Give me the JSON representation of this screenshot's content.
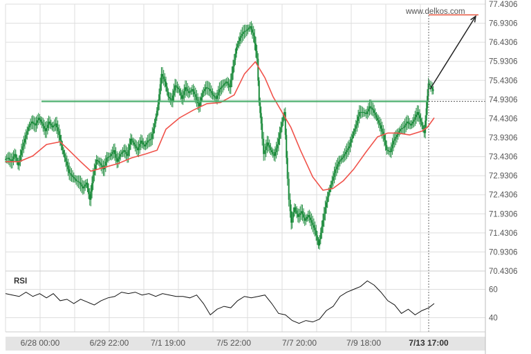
{
  "watermark": "www.delkos.com",
  "rsi_title": "RSI",
  "colors": {
    "candle": "#1a8a3a",
    "moving_average": "#f0524a",
    "support_line": "#4caf6e",
    "target_line": "#e8543d",
    "arrow": "#222222",
    "grid": "#dddddd",
    "axis_text": "#555555",
    "x_axis_band": "#e4e4e4"
  },
  "chart_data": [
    {
      "type": "candlestick",
      "x_tick_labels": [
        "6/28 00:00",
        "6/29 22:00",
        "7/1 19:00",
        "7/5 22:00",
        "7/7 20:00",
        "7/9 18:00",
        "7/13 17:00"
      ],
      "ylim": [
        70.4306,
        77.4306
      ],
      "y_tick_labels": [
        "77.4306",
        "76.9306",
        "76.4306",
        "75.9306",
        "75.4306",
        "74.9306",
        "74.4306",
        "73.9306",
        "73.4306",
        "72.9306",
        "72.4306",
        "71.9306",
        "71.4306",
        "70.9306",
        "70.4306"
      ],
      "resistance_level": 74.88,
      "target_level": 77.15,
      "series": [
        {
          "name": "Price",
          "points": [
            [
              0,
              73.35
            ],
            [
              5,
              73.4
            ],
            [
              10,
              73.3
            ],
            [
              15,
              73.5
            ],
            [
              20,
              73.2
            ],
            [
              25,
              73.6
            ],
            [
              30,
              73.9
            ],
            [
              35,
              74.2
            ],
            [
              40,
              74.35
            ],
            [
              45,
              74.25
            ],
            [
              50,
              74.45
            ],
            [
              55,
              74.3
            ],
            [
              60,
              74.1
            ],
            [
              65,
              74.35
            ],
            [
              70,
              74.2
            ],
            [
              75,
              74.3
            ],
            [
              80,
              74.0
            ],
            [
              85,
              73.6
            ],
            [
              90,
              73.3
            ],
            [
              95,
              73.0
            ],
            [
              100,
              72.9
            ],
            [
              105,
              72.8
            ],
            [
              110,
              72.75
            ],
            [
              115,
              72.6
            ],
            [
              120,
              72.75
            ],
            [
              125,
              72.3
            ],
            [
              130,
              72.95
            ],
            [
              135,
              73.35
            ],
            [
              140,
              73.25
            ],
            [
              145,
              73.1
            ],
            [
              150,
              73.4
            ],
            [
              155,
              73.45
            ],
            [
              160,
              73.6
            ],
            [
              165,
              73.3
            ],
            [
              170,
              73.5
            ],
            [
              175,
              73.6
            ],
            [
              180,
              73.45
            ],
            [
              185,
              73.9
            ],
            [
              190,
              73.75
            ],
            [
              195,
              73.6
            ],
            [
              200,
              73.85
            ],
            [
              205,
              73.7
            ],
            [
              210,
              73.85
            ],
            [
              215,
              73.9
            ],
            [
              220,
              74.3
            ],
            [
              225,
              74.8
            ],
            [
              230,
              75.6
            ],
            [
              235,
              75.4
            ],
            [
              240,
              75.0
            ],
            [
              245,
              74.9
            ],
            [
              250,
              75.3
            ],
            [
              255,
              75.2
            ],
            [
              260,
              74.95
            ],
            [
              265,
              75.25
            ],
            [
              270,
              75.1
            ],
            [
              275,
              75.2
            ],
            [
              280,
              75.0
            ],
            [
              285,
              74.75
            ],
            [
              290,
              75.1
            ],
            [
              295,
              75.25
            ],
            [
              300,
              75.2
            ],
            [
              305,
              75.05
            ],
            [
              310,
              74.95
            ],
            [
              315,
              75.2
            ],
            [
              320,
              75.3
            ],
            [
              325,
              75.4
            ],
            [
              330,
              75.25
            ],
            [
              335,
              75.8
            ],
            [
              340,
              76.3
            ],
            [
              345,
              76.55
            ],
            [
              350,
              76.7
            ],
            [
              355,
              76.75
            ],
            [
              360,
              76.85
            ],
            [
              365,
              76.6
            ],
            [
              370,
              76.0
            ],
            [
              373,
              74.85
            ],
            [
              376,
              74.3
            ],
            [
              380,
              73.5
            ],
            [
              385,
              73.8
            ],
            [
              390,
              73.6
            ],
            [
              395,
              73.45
            ],
            [
              400,
              73.75
            ],
            [
              405,
              74.2
            ],
            [
              410,
              74.6
            ],
            [
              413,
              73.4
            ],
            [
              417,
              72.3
            ],
            [
              420,
              71.7
            ],
            [
              425,
              72.1
            ],
            [
              430,
              71.85
            ],
            [
              435,
              72.0
            ],
            [
              440,
              71.75
            ],
            [
              445,
              71.9
            ],
            [
              450,
              71.7
            ],
            [
              455,
              71.5
            ],
            [
              460,
              71.1
            ],
            [
              465,
              71.6
            ],
            [
              470,
              72.1
            ],
            [
              475,
              72.5
            ],
            [
              480,
              72.8
            ],
            [
              485,
              73.1
            ],
            [
              490,
              73.3
            ],
            [
              495,
              73.4
            ],
            [
              500,
              73.55
            ],
            [
              505,
              73.7
            ],
            [
              510,
              74.0
            ],
            [
              515,
              74.25
            ],
            [
              520,
              74.6
            ],
            [
              525,
              74.6
            ],
            [
              530,
              74.55
            ],
            [
              535,
              74.75
            ],
            [
              540,
              74.65
            ],
            [
              545,
              74.45
            ],
            [
              550,
              74.25
            ],
            [
              555,
              74.0
            ],
            [
              560,
              73.6
            ],
            [
              565,
              73.55
            ],
            [
              570,
              73.85
            ],
            [
              575,
              74.0
            ],
            [
              580,
              74.15
            ],
            [
              585,
              74.2
            ],
            [
              590,
              74.35
            ],
            [
              595,
              74.25
            ],
            [
              600,
              74.4
            ],
            [
              605,
              74.6
            ],
            [
              610,
              74.35
            ],
            [
              615,
              74.05
            ],
            [
              618,
              74.7
            ],
            [
              621,
              75.35
            ],
            [
              625,
              75.25
            ],
            [
              628,
              75.15
            ]
          ]
        },
        {
          "name": "Moving average",
          "points": [
            [
              0,
              73.3
            ],
            [
              20,
              73.3
            ],
            [
              40,
              73.45
            ],
            [
              60,
              73.75
            ],
            [
              80,
              73.82
            ],
            [
              90,
              73.65
            ],
            [
              110,
              73.3
            ],
            [
              125,
              73.05
            ],
            [
              145,
              73.15
            ],
            [
              165,
              73.25
            ],
            [
              185,
              73.4
            ],
            [
              205,
              73.5
            ],
            [
              222,
              73.6
            ],
            [
              235,
              74.15
            ],
            [
              255,
              74.45
            ],
            [
              275,
              74.65
            ],
            [
              295,
              74.82
            ],
            [
              315,
              74.85
            ],
            [
              335,
              75.05
            ],
            [
              350,
              75.6
            ],
            [
              366,
              75.92
            ],
            [
              380,
              75.5
            ],
            [
              392,
              75.0
            ],
            [
              405,
              74.6
            ],
            [
              418,
              74.2
            ],
            [
              432,
              73.6
            ],
            [
              450,
              72.9
            ],
            [
              465,
              72.55
            ],
            [
              480,
              72.6
            ],
            [
              495,
              72.8
            ],
            [
              510,
              73.1
            ],
            [
              528,
              73.55
            ],
            [
              545,
              73.95
            ],
            [
              560,
              74.05
            ],
            [
              575,
              74.05
            ],
            [
              592,
              74.0
            ],
            [
              610,
              74.1
            ],
            [
              618,
              74.2
            ],
            [
              628,
              74.45
            ]
          ]
        }
      ]
    },
    {
      "type": "line",
      "title": "RSI",
      "y_tick_labels": [
        "60",
        "40"
      ],
      "ylim": [
        30,
        70
      ],
      "series": [
        {
          "name": "RSI",
          "points": [
            [
              0,
              57
            ],
            [
              10,
              56
            ],
            [
              20,
              55
            ],
            [
              30,
              58
            ],
            [
              40,
              55
            ],
            [
              50,
              57
            ],
            [
              60,
              54
            ],
            [
              70,
              57
            ],
            [
              80,
              52
            ],
            [
              90,
              53
            ],
            [
              100,
              50
            ],
            [
              110,
              53
            ],
            [
              120,
              51
            ],
            [
              130,
              49
            ],
            [
              140,
              52
            ],
            [
              150,
              54
            ],
            [
              160,
              55
            ],
            [
              170,
              58
            ],
            [
              180,
              57
            ],
            [
              190,
              58
            ],
            [
              200,
              56
            ],
            [
              210,
              57
            ],
            [
              220,
              55
            ],
            [
              230,
              57
            ],
            [
              240,
              56
            ],
            [
              250,
              55
            ],
            [
              260,
              55
            ],
            [
              270,
              54
            ],
            [
              280,
              56
            ],
            [
              290,
              50
            ],
            [
              300,
              42
            ],
            [
              310,
              46
            ],
            [
              320,
              48
            ],
            [
              330,
              47
            ],
            [
              340,
              52
            ],
            [
              350,
              55
            ],
            [
              360,
              54
            ],
            [
              370,
              55
            ],
            [
              380,
              56
            ],
            [
              390,
              50
            ],
            [
              400,
              43
            ],
            [
              410,
              42
            ],
            [
              420,
              38
            ],
            [
              430,
              36
            ],
            [
              440,
              38
            ],
            [
              450,
              37
            ],
            [
              460,
              39
            ],
            [
              470,
              45
            ],
            [
              480,
              48
            ],
            [
              490,
              55
            ],
            [
              500,
              58
            ],
            [
              510,
              60
            ],
            [
              520,
              62
            ],
            [
              530,
              66
            ],
            [
              540,
              63
            ],
            [
              550,
              58
            ],
            [
              560,
              52
            ],
            [
              570,
              49
            ],
            [
              580,
              43
            ],
            [
              590,
              46
            ],
            [
              600,
              42
            ],
            [
              610,
              45
            ],
            [
              620,
              47
            ],
            [
              628,
              50
            ]
          ]
        }
      ]
    }
  ]
}
